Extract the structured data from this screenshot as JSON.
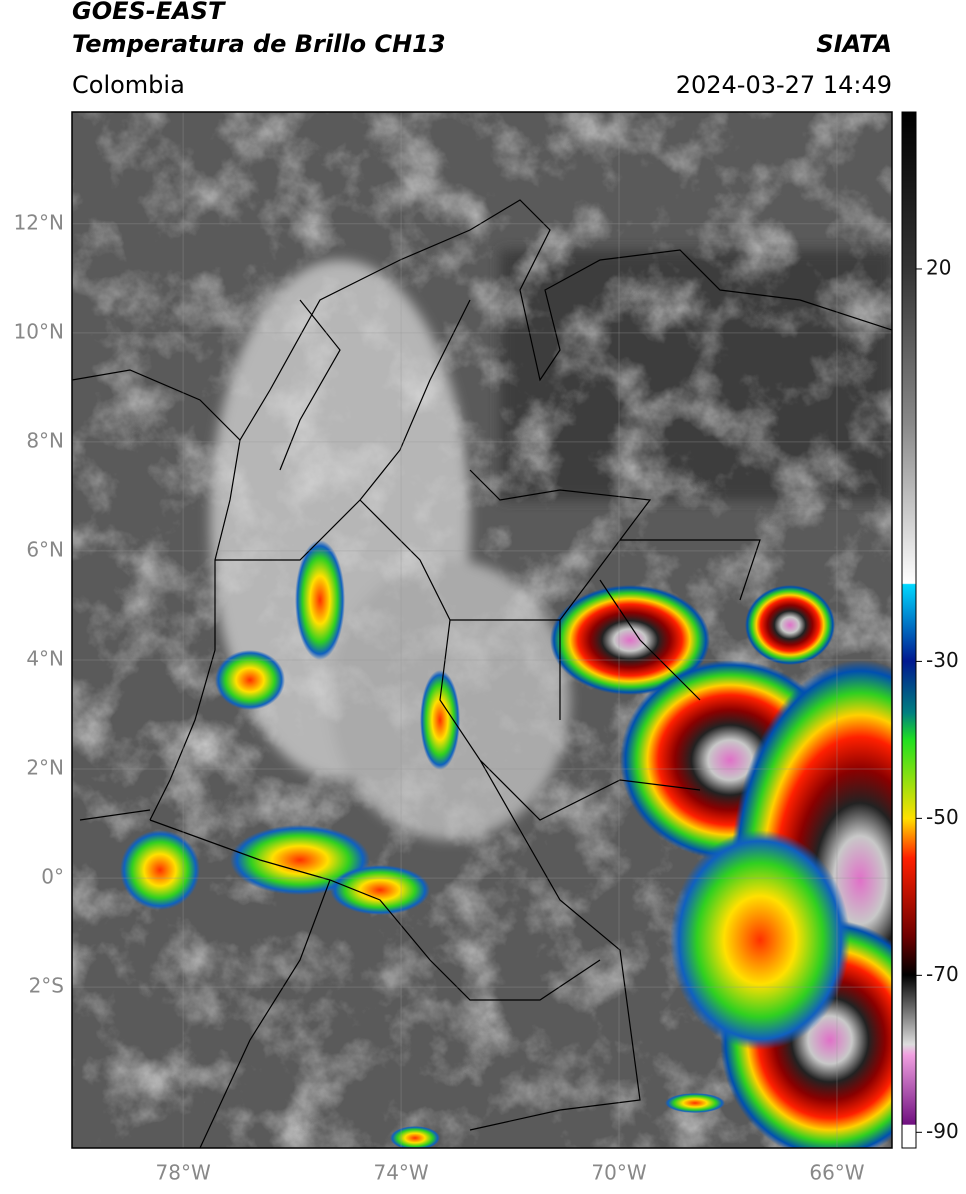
{
  "header": {
    "title": "GOES-EAST",
    "subtitle": "Temperatura de Brillo CH13",
    "source": "SIATA",
    "region": "Colombia",
    "datetime": "2024-03-27 14:49"
  },
  "map": {
    "lonlim": [
      -80.04,
      -64.99
    ],
    "latlim": [
      -4.95,
      14.05
    ],
    "lat_ticks": [
      {
        "value": 12,
        "label": "12°N"
      },
      {
        "value": 10,
        "label": "10°N"
      },
      {
        "value": 8,
        "label": "8°N"
      },
      {
        "value": 6,
        "label": "6°N"
      },
      {
        "value": 4,
        "label": "4°N"
      },
      {
        "value": 2,
        "label": "2°N"
      },
      {
        "value": 0,
        "label": "0°"
      },
      {
        "value": -2,
        "label": "2°S"
      }
    ],
    "lon_ticks": [
      {
        "value": -78,
        "label": "78°W"
      },
      {
        "value": -74,
        "label": "74°W"
      },
      {
        "value": -70,
        "label": "70°W"
      },
      {
        "value": -66,
        "label": "66°W"
      }
    ],
    "grid": true
  },
  "colorbar": {
    "lim": [
      -92,
      40
    ],
    "ticks": [
      20,
      -30,
      -50,
      -70,
      -90
    ]
  }
}
